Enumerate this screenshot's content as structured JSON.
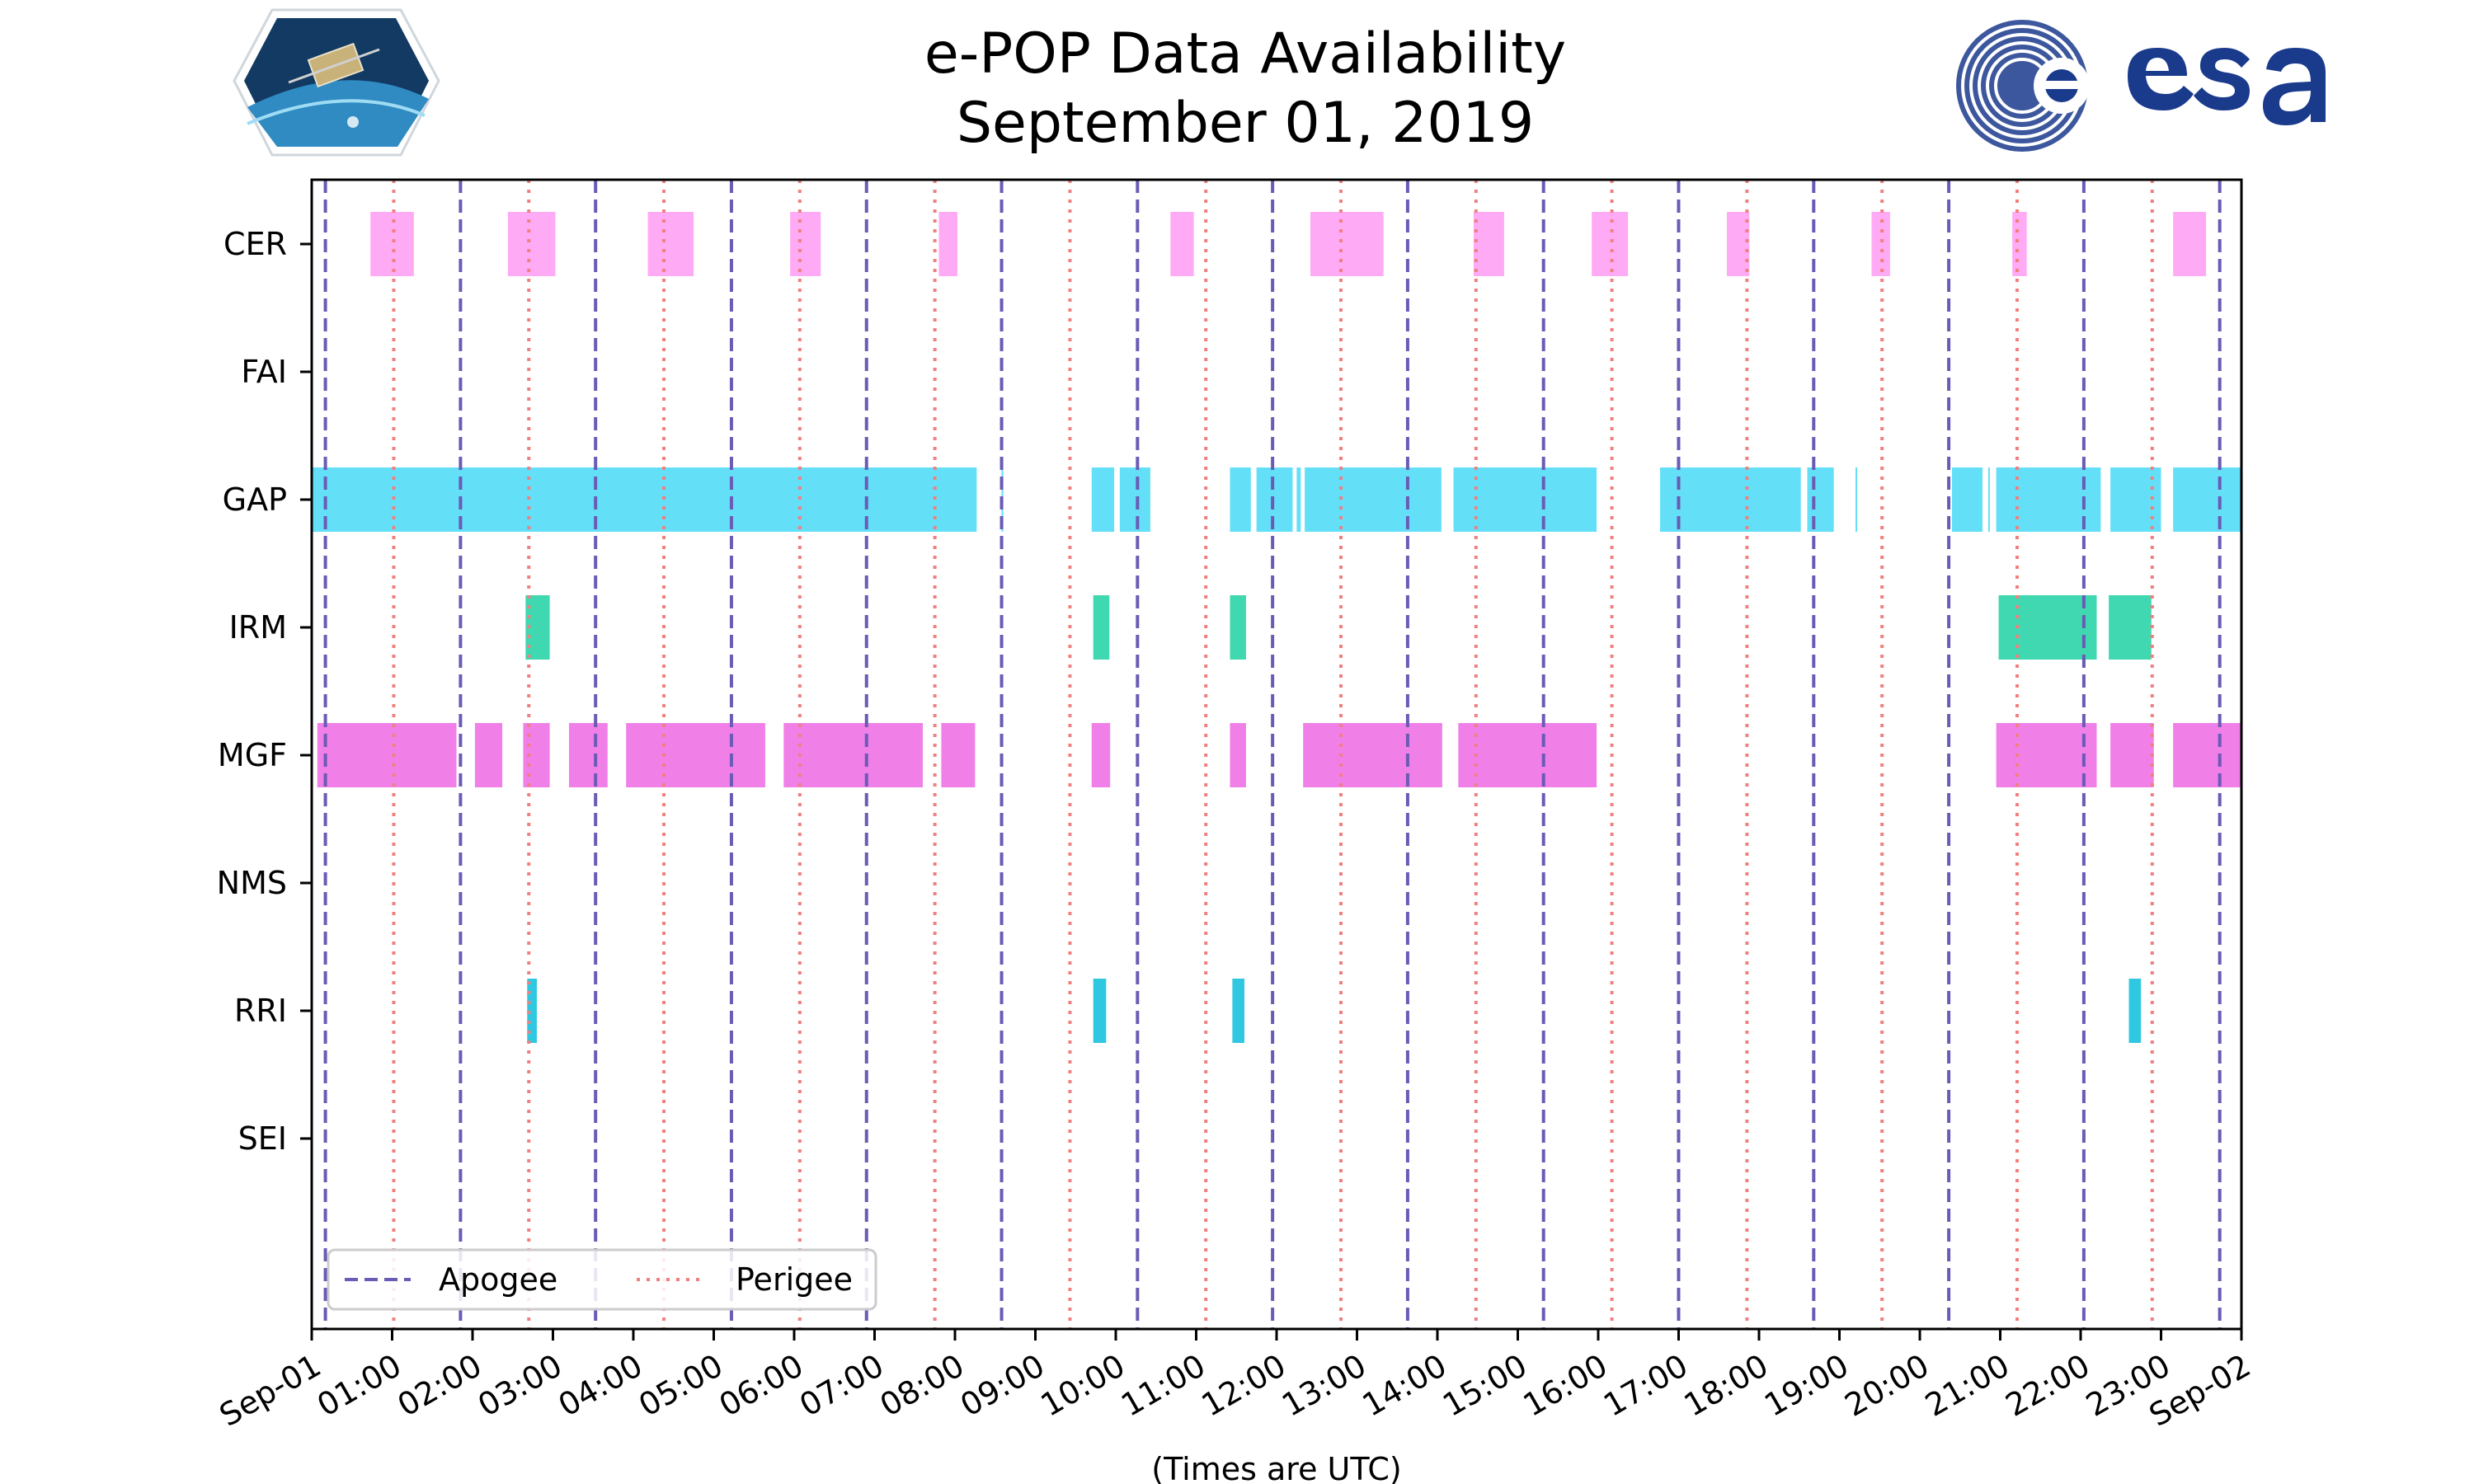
{
  "chart_data": {
    "type": "timeline",
    "title_lines": [
      "e-POP Data Availability",
      "September 01, 2019"
    ],
    "xlabel": "(Times are UTC)",
    "xlim_hours": [
      0,
      24
    ],
    "x_tick_labels": [
      "Sep-01",
      "01:00",
      "02:00",
      "03:00",
      "04:00",
      "05:00",
      "06:00",
      "07:00",
      "08:00",
      "09:00",
      "10:00",
      "11:00",
      "12:00",
      "13:00",
      "14:00",
      "15:00",
      "16:00",
      "17:00",
      "18:00",
      "19:00",
      "20:00",
      "21:00",
      "22:00",
      "23:00",
      "Sep-02"
    ],
    "instruments": [
      "CER",
      "FAI",
      "GAP",
      "IRM",
      "MGF",
      "NMS",
      "RRI",
      "SEI"
    ],
    "apogee_hours": [
      0.17,
      1.85,
      3.53,
      5.22,
      6.9,
      8.58,
      10.27,
      11.95,
      13.63,
      15.32,
      17.0,
      18.68,
      20.36,
      22.04,
      23.73
    ],
    "perigee_hours": [
      1.02,
      2.7,
      4.38,
      6.07,
      7.75,
      9.43,
      11.12,
      12.8,
      14.48,
      16.17,
      17.85,
      19.53,
      21.21,
      22.89
    ],
    "legend": [
      {
        "label": "Apogee",
        "style": "dashed",
        "color": "#6a5bb5"
      },
      {
        "label": "Perigee",
        "style": "dotted",
        "color": "#f08080"
      }
    ],
    "series": [
      {
        "name": "CER",
        "color": "#ffaaf5",
        "intervals": [
          [
            0.73,
            1.27
          ],
          [
            2.44,
            3.03
          ],
          [
            4.18,
            4.75
          ],
          [
            5.95,
            6.33
          ],
          [
            7.8,
            8.03
          ],
          [
            10.68,
            10.97
          ],
          [
            12.42,
            13.33
          ],
          [
            14.45,
            14.83
          ],
          [
            15.92,
            16.37
          ],
          [
            17.6,
            17.88
          ],
          [
            19.4,
            19.63
          ],
          [
            21.15,
            21.33
          ],
          [
            23.15,
            23.56
          ]
        ]
      },
      {
        "name": "FAI",
        "color": "#cccccc",
        "intervals": []
      },
      {
        "name": "GAP",
        "color": "#64dff8",
        "intervals": [
          [
            0,
            8.27
          ],
          [
            8.58,
            8.6
          ],
          [
            9.7,
            9.98
          ],
          [
            10.05,
            10.43
          ],
          [
            11.42,
            11.68
          ],
          [
            11.75,
            12.2
          ],
          [
            12.25,
            12.3
          ],
          [
            12.35,
            14.05
          ],
          [
            14.2,
            15.98
          ],
          [
            16.77,
            18.52
          ],
          [
            18.6,
            18.93
          ],
          [
            19.2,
            19.22
          ],
          [
            20.4,
            20.78
          ],
          [
            20.85,
            20.87
          ],
          [
            20.95,
            22.25
          ],
          [
            22.37,
            23.0
          ],
          [
            23.15,
            24.0
          ]
        ]
      },
      {
        "name": "IRM",
        "color": "#40d8b0",
        "intervals": [
          [
            2.66,
            2.96
          ],
          [
            9.72,
            9.92
          ],
          [
            11.42,
            11.62
          ],
          [
            20.98,
            22.2
          ],
          [
            22.35,
            22.88
          ]
        ]
      },
      {
        "name": "MGF",
        "color": "#f080e8",
        "intervals": [
          [
            0.07,
            1.8
          ],
          [
            2.03,
            2.37
          ],
          [
            2.63,
            2.96
          ],
          [
            3.2,
            3.68
          ],
          [
            3.91,
            5.64
          ],
          [
            5.87,
            7.6
          ],
          [
            7.83,
            8.25
          ],
          [
            9.7,
            9.93
          ],
          [
            11.42,
            11.62
          ],
          [
            12.33,
            14.06
          ],
          [
            14.26,
            15.98
          ],
          [
            20.95,
            22.2
          ],
          [
            22.37,
            22.91
          ],
          [
            23.15,
            24.0
          ]
        ]
      },
      {
        "name": "NMS",
        "color": "#cccccc",
        "intervals": []
      },
      {
        "name": "RRI",
        "color": "#30c8e0",
        "intervals": [
          [
            2.68,
            2.8
          ],
          [
            9.72,
            9.88
          ],
          [
            11.45,
            11.6
          ],
          [
            22.6,
            22.75
          ]
        ]
      },
      {
        "name": "SEI",
        "color": "#cccccc",
        "intervals": []
      }
    ]
  }
}
